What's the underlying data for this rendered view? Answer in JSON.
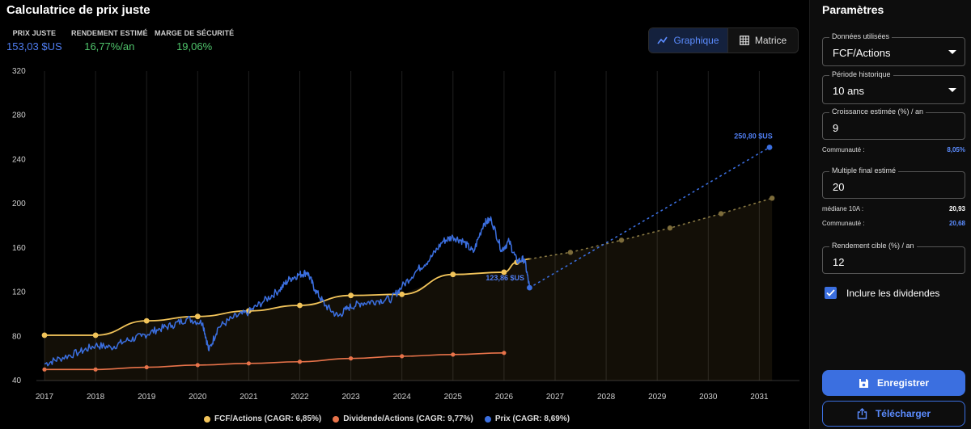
{
  "header": {
    "title": "Calculatrice de prix juste"
  },
  "metrics": [
    {
      "label": "PRIX JUSTE",
      "value": "153,03 $US",
      "color": "#4f7df0"
    },
    {
      "label": "RENDEMENT ESTIMÉ",
      "value": "16,77%/an",
      "color": "#4fc36b"
    },
    {
      "label": "MARGE DE SÉCURITÉ",
      "value": "19,06%",
      "color": "#4fc36b"
    }
  ],
  "view_toggle": {
    "graph_label": "Graphique",
    "matrix_label": "Matrice",
    "active": "graph"
  },
  "legend": [
    {
      "label": "FCF/Actions (CAGR: 6,85%)",
      "color": "#f2c45a"
    },
    {
      "label": "Dividende/Actions (CAGR: 9,77%)",
      "color": "#e8734a"
    },
    {
      "label": "Prix (CAGR: 8,69%)",
      "color": "#3b6fe0"
    }
  ],
  "chart_data": {
    "type": "line",
    "ylim": [
      40,
      320
    ],
    "yticks": [
      40,
      80,
      120,
      160,
      200,
      240,
      280,
      320
    ],
    "xlim": [
      2017,
      2031.6
    ],
    "xticks": [
      "2017",
      "2018",
      "2019",
      "2020",
      "2021",
      "2022",
      "2023",
      "2024",
      "2025",
      "2026",
      "2027",
      "2028",
      "2029",
      "2030",
      "2031"
    ],
    "grid": "vertical",
    "annotations": [
      {
        "text": "123,86 $US",
        "x": 2026.1,
        "y": 124
      },
      {
        "text": "250,80 $US",
        "x": 2031.2,
        "y": 251
      }
    ],
    "series": [
      {
        "name": "FCF/Actions",
        "color": "#f2c45a",
        "points": [
          [
            2017,
            81
          ],
          [
            2018,
            81
          ],
          [
            2019,
            94
          ],
          [
            2020,
            98
          ],
          [
            2021,
            103
          ],
          [
            2022,
            108
          ],
          [
            2023,
            117
          ],
          [
            2024,
            118
          ],
          [
            2025,
            136
          ],
          [
            2026,
            138
          ],
          [
            2026.25,
            147
          ]
        ],
        "current": [
          2026.5,
          150
        ],
        "projection": [
          [
            2026.5,
            150
          ],
          [
            2027.3,
            156
          ],
          [
            2028.3,
            167
          ],
          [
            2029.25,
            178
          ],
          [
            2030.25,
            191
          ],
          [
            2031.25,
            205
          ]
        ]
      },
      {
        "name": "Dividende/Actions",
        "color": "#e8734a",
        "points": [
          [
            2017,
            50
          ],
          [
            2018,
            50
          ],
          [
            2019,
            52
          ],
          [
            2020,
            54
          ],
          [
            2021,
            55.5
          ],
          [
            2022,
            57
          ],
          [
            2023,
            60
          ],
          [
            2024,
            62
          ],
          [
            2025,
            63.5
          ],
          [
            2026,
            65
          ]
        ]
      },
      {
        "name": "Prix",
        "color": "#3b6fe0",
        "points": [
          [
            2017,
            55
          ],
          [
            2017.3,
            60
          ],
          [
            2017.7,
            66
          ],
          [
            2018,
            72
          ],
          [
            2018.3,
            70
          ],
          [
            2018.6,
            76
          ],
          [
            2018.9,
            80
          ],
          [
            2019.2,
            86
          ],
          [
            2019.5,
            90
          ],
          [
            2019.8,
            96
          ],
          [
            2020.1,
            92
          ],
          [
            2020.22,
            67
          ],
          [
            2020.4,
            88
          ],
          [
            2020.7,
            97
          ],
          [
            2021,
            102
          ],
          [
            2021.3,
            112
          ],
          [
            2021.6,
            122
          ],
          [
            2021.8,
            132
          ],
          [
            2022,
            136
          ],
          [
            2022.15,
            138
          ],
          [
            2022.3,
            122
          ],
          [
            2022.5,
            108
          ],
          [
            2022.75,
            98
          ],
          [
            2022.95,
            106
          ],
          [
            2023.2,
            110
          ],
          [
            2023.5,
            112
          ],
          [
            2023.8,
            114
          ],
          [
            2024,
            125
          ],
          [
            2024.3,
            140
          ],
          [
            2024.55,
            150
          ],
          [
            2024.8,
            166
          ],
          [
            2025,
            170
          ],
          [
            2025.2,
            166
          ],
          [
            2025.4,
            156
          ],
          [
            2025.6,
            182
          ],
          [
            2025.75,
            186
          ],
          [
            2025.95,
            158
          ],
          [
            2026.1,
            166
          ],
          [
            2026.25,
            148
          ],
          [
            2026.4,
            150
          ],
          [
            2026.5,
            124
          ]
        ],
        "current": [
          2026.5,
          124
        ],
        "projection": [
          [
            2026.5,
            124
          ],
          [
            2031.2,
            251
          ]
        ]
      }
    ]
  },
  "panel": {
    "title": "Paramètres",
    "data_used": {
      "label": "Données utilisées",
      "value": "FCF/Actions"
    },
    "period": {
      "label": "Période historique",
      "value": "10 ans"
    },
    "growth": {
      "label": "Croissance estimée (%) / an",
      "value": "9"
    },
    "growth_note": {
      "label": "Communauté :",
      "value": "8,05%"
    },
    "multiple": {
      "label": "Multiple final estimé",
      "value": "20"
    },
    "multiple_note1": {
      "label": "médiane 10A :",
      "value": "20,93"
    },
    "multiple_note2": {
      "label": "Communauté :",
      "value": "20,68"
    },
    "target": {
      "label": "Rendement cible (%) / an",
      "value": "12"
    },
    "include_dividends": {
      "label": "Inclure les dividendes"
    },
    "save_label": "Enregistrer",
    "download_label": "Télécharger"
  }
}
